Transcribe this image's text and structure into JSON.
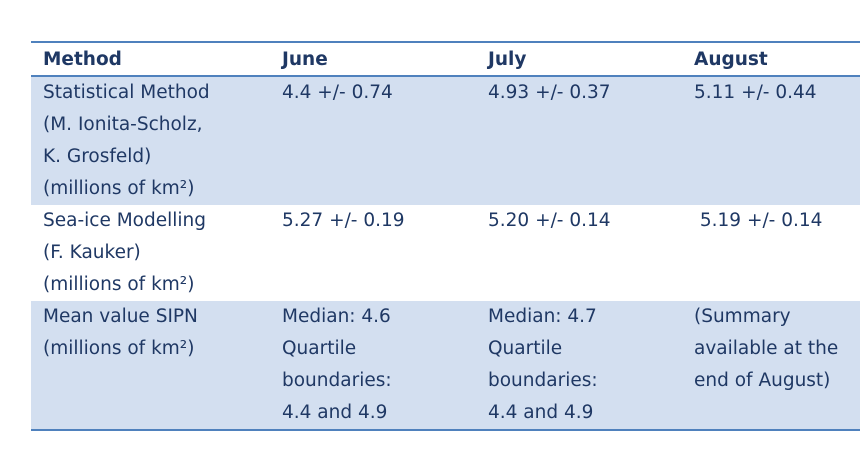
{
  "headers": [
    "Method",
    "June",
    "July",
    "August"
  ],
  "rows": [
    {
      "method": [
        "Statistical Method",
        "(M. Ionita-Scholz,",
        "K. Grosfeld)",
        "(millions of km²)"
      ],
      "june": [
        "4.4 +/- 0.74"
      ],
      "july": [
        "4.93 +/- 0.37"
      ],
      "august": [
        "5.11 +/- 0.44"
      ]
    },
    {
      "method": [
        "Sea-ice Modelling",
        "(F. Kauker)",
        "(millions of km²)"
      ],
      "june": [
        "5.27 +/- 0.19"
      ],
      "july": [
        "5.20 +/- 0.14"
      ],
      "august": [
        " 5.19 +/- 0.14"
      ]
    },
    {
      "method": [
        "Mean value SIPN",
        "(millions of km²)"
      ],
      "june": [
        "Median: 4.6",
        "Quartile",
        "boundaries:",
        "4.4 and 4.9"
      ],
      "july": [
        "Median: 4.7",
        "Quartile",
        "boundaries:",
        "4.4 and 4.9"
      ],
      "august": [
        "(Summary",
        "available at the",
        "end of August)"
      ]
    }
  ]
}
